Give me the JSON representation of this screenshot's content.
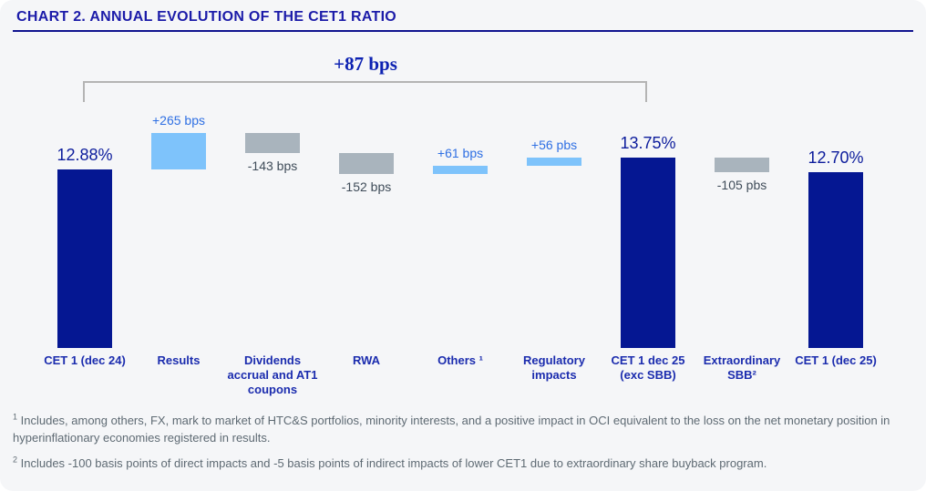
{
  "title": "CHART 2. ANNUAL EVOLUTION OF THE CET1 RATIO",
  "bracket": {
    "label": "+87 bps"
  },
  "chart_data": {
    "type": "bar",
    "subtype": "waterfall",
    "unit": "basis points (CET1 ratio %)",
    "title": "CHART 2. ANNUAL EVOLUTION OF THE CET1 RATIO",
    "total_change_label": "+87 bps",
    "ylim_bps": [
      0,
      1600
    ],
    "grid": false,
    "legend": false,
    "columns": [
      {
        "label": "CET 1 (dec 24)",
        "kind": "total",
        "value_bps": 1288,
        "display_value": "12.88%"
      },
      {
        "label": "Results",
        "kind": "increase",
        "delta_bps": 265,
        "display_value": "+265 bps"
      },
      {
        "label": "Dividends accrual and AT1 coupons",
        "kind": "decrease",
        "delta_bps": -143,
        "display_value": "-143 bps"
      },
      {
        "label": "RWA",
        "kind": "decrease",
        "delta_bps": -152,
        "display_value": "-152 bps"
      },
      {
        "label": "Others ¹",
        "kind": "increase",
        "delta_bps": 61,
        "display_value": "+61 bps"
      },
      {
        "label": "Regulatory impacts",
        "kind": "increase",
        "delta_bps": 56,
        "display_value": "+56 pbs"
      },
      {
        "label": "CET 1 dec 25 (exc SBB)",
        "kind": "total",
        "value_bps": 1375,
        "display_value": "13.75%"
      },
      {
        "label": "Extraordinary SBB²",
        "kind": "decrease",
        "delta_bps": -105,
        "display_value": "-105 pbs"
      },
      {
        "label": "CET 1 (dec 25)",
        "kind": "total",
        "value_bps": 1270,
        "display_value": "12.70%"
      }
    ]
  },
  "footnotes": [
    {
      "marker": "1",
      "text": " Includes, among others, FX, mark to market of HTC&S portfolios, minority interests, and a positive impact in OCI equivalent to the loss on the net monetary position in hyperinflationary economies registered in results."
    },
    {
      "marker": "2",
      "text": " Includes -100 basis points of direct impacts and -5 basis points of indirect impacts of lower CET1 due to extraordinary share buyback program."
    }
  ],
  "colors": {
    "background": "#f5f6f8",
    "title_navy": "#1c1ca9",
    "underline_navy": "#10138f",
    "bar_total": "#051792",
    "bar_increase": "#7ec3fb",
    "bar_decrease": "#a9b4bd",
    "value_label_total": "#0c1c9c",
    "value_label_increase": "#2e6fe3",
    "value_label_decrease": "#3f4c59",
    "category_label_navy": "#1b2cae",
    "bracket_gray": "#b4b4b4",
    "bracket_label_blue": "#0d22b2",
    "footnote_gray": "#5e6a73"
  }
}
